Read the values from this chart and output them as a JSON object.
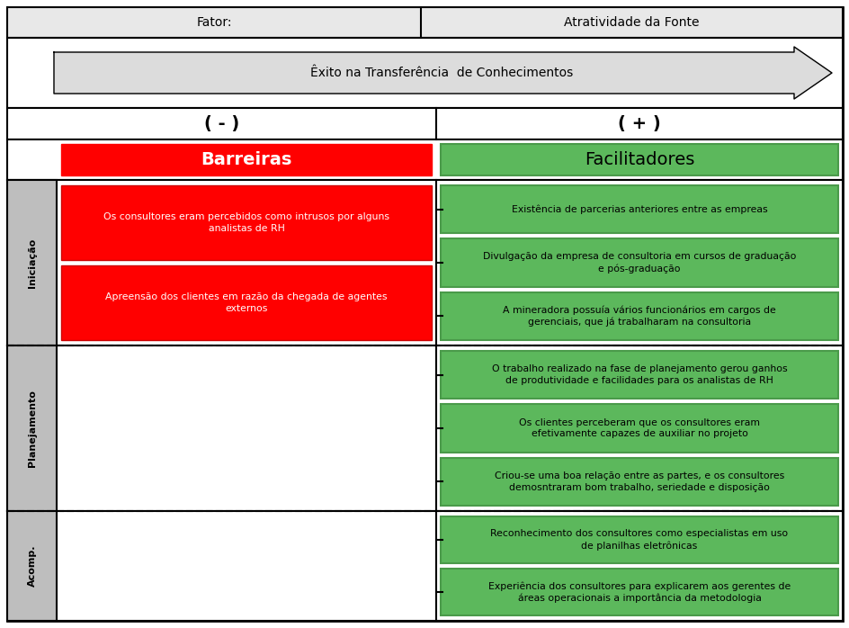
{
  "title_fator": "Fator:",
  "title_value": "Atratividade da Fonte",
  "arrow_text": "Êxito na Transferência  de Conhecimentos",
  "minus_label": "( - )",
  "plus_label": "( + )",
  "barreiras_label": "Barreiras",
  "facilitadores_label": "Facilitadores",
  "phase_labels": [
    "Iniciação",
    "Planejamento",
    "Acomp."
  ],
  "red_color": "#FF0000",
  "green_color": "#5CB85C",
  "green_border": "#4A9A4A",
  "gray_phase": "#BEBEBE",
  "header_bg": "#E8E8E8",
  "white": "#FFFFFF",
  "black": "#000000",
  "barriers": {
    "Iniciação": [
      "Os consultores eram percebidos como intrusos por alguns\nanalistas de RH",
      "Apreensão dos clientes em razão da chegada de agentes\nexternos"
    ],
    "Planejamento": [],
    "Acomp.": []
  },
  "facilitators": {
    "Iniciação": [
      "Existência de parcerias anteriores entre as empreas",
      "Divulgação da empresa de consultoria em cursos de graduação\ne pós-graduação",
      "A mineradora possuía vários funcionários em cargos de\ngerenciais, que já trabalharam na consultoria"
    ],
    "Planejamento": [
      "O trabalho realizado na fase de planejamento gerou ganhos\nde produtividade e facilidades para os analistas de RH",
      "Os clientes perceberam que os consultores eram\nefetivamente capazes de auxiliar no projeto",
      "Criou-se uma boa relação entre as partes, e os consultores\ndemosntraram bom trabalho, seriedade e disposição"
    ],
    "Acomp.": [
      "Reconhecimento dos consultores como especialistas em uso\nde planilhas eletrônicas",
      "Experiência dos consultores para explicarem aos gerentes de\náreas operacionais a importância da metodologia"
    ]
  },
  "figsize": [
    9.45,
    6.98
  ],
  "dpi": 100
}
